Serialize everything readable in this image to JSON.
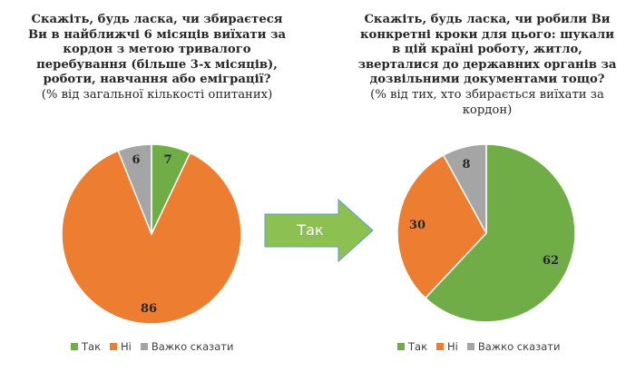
{
  "colors": {
    "yes": "#70ad47",
    "no": "#ed7d31",
    "hard": "#a5a5a5",
    "arrow_fill": "#8cc152",
    "arrow_stroke": "#5b9bd5"
  },
  "left": {
    "question": "Скажіть, будь ласка, чи збираєтеся\nВи в найближчі 6 місяців виїхати за\nкордон з метою тривалого\nперебування (більше 3-х місяців),\nроботи, навчання або еміграції?",
    "subtitle": "(% від загальної кількості опитаних)"
  },
  "right": {
    "question": "Скажіть, будь ласка, чи робили Ви\nконкретні кроки для цього: шукали\nв цій країні роботу, житло,\nзверталися до державних органів за\nдозвільними документами тощо?",
    "subtitle": "(% від тих, хто збирається виїхати за\nкордон)"
  },
  "arrow_label": "Так",
  "chart_data": [
    {
      "type": "pie",
      "categories": [
        "Так",
        "Ні",
        "Важко сказати"
      ],
      "values": [
        7,
        86,
        6
      ],
      "legend": "bottom"
    },
    {
      "type": "pie",
      "categories": [
        "Так",
        "Ні",
        "Важко сказати"
      ],
      "values": [
        62,
        30,
        8
      ],
      "legend": "bottom"
    }
  ]
}
